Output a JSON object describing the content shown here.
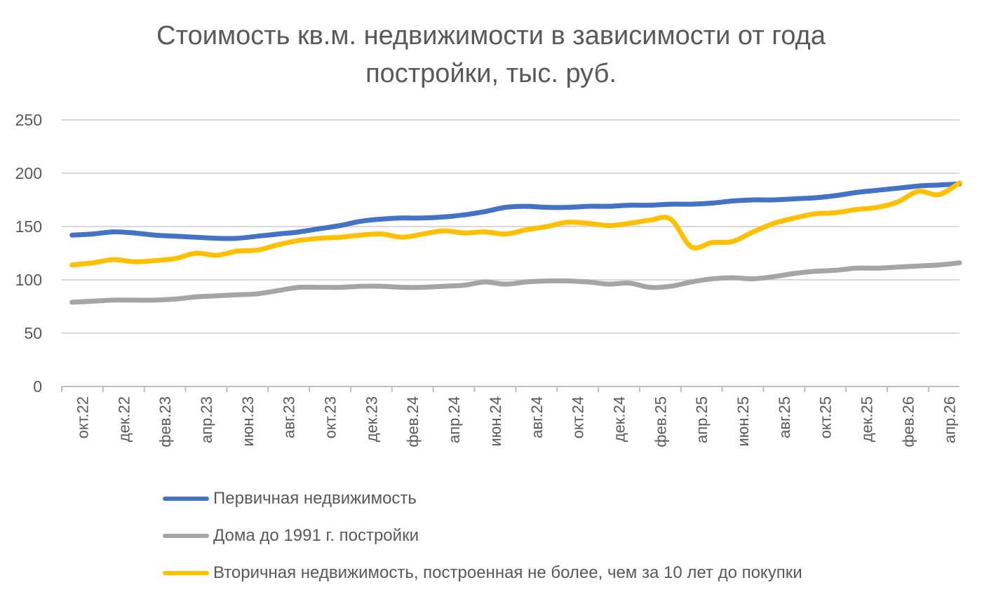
{
  "chart_data": {
    "type": "line",
    "title": [
      "Стоимость кв.м. недвижимости в зависимости от года",
      "постройки, тыс. руб."
    ],
    "xlabel": "",
    "ylabel": "",
    "ylim": [
      0,
      250
    ],
    "yticks": [
      "0",
      "50",
      "100",
      "150",
      "200",
      "250"
    ],
    "grid": true,
    "legend_position": "bottom",
    "x": [
      "окт.22",
      "ноя.22",
      "дек.22",
      "янв.23",
      "фев.23",
      "мар.23",
      "апр.23",
      "май.23",
      "июн.23",
      "июл.23",
      "авг.23",
      "сен.23",
      "окт.23",
      "ноя.23",
      "дек.23",
      "янв.24",
      "фев.24",
      "мар.24",
      "апр.24",
      "май.24",
      "июн.24",
      "июл.24",
      "авг.24",
      "сен.24",
      "окт.24",
      "ноя.24",
      "дек.24",
      "янв.25",
      "фев.25",
      "мар.25",
      "апр.25",
      "май.25",
      "июн.25",
      "июл.25",
      "авг.25",
      "сен.25",
      "окт.25",
      "ноя.25",
      "дек.25",
      "янв.26",
      "фев.26",
      "мар.26",
      "апр.26",
      "май.26"
    ],
    "xtick_labels": [
      "окт.22",
      "дек.22",
      "фев.23",
      "апр.23",
      "июн.23",
      "авг.23",
      "окт.23",
      "дек.23",
      "фев.24",
      "апр.24",
      "июн.24",
      "авг.24",
      "окт.24",
      "дек.24",
      "фев.25",
      "апр.25",
      "июн.25",
      "авг.25",
      "окт.25",
      "дек.25",
      "фев.26",
      "апр.26"
    ],
    "series": [
      {
        "name": "Первичная недвижимость",
        "color": "#4472C4",
        "values": [
          142,
          143,
          145,
          144,
          142,
          141,
          140,
          139,
          139,
          141,
          143,
          145,
          148,
          151,
          155,
          157,
          158,
          158,
          159,
          161,
          164,
          168,
          169,
          168,
          168,
          169,
          169,
          170,
          170,
          171,
          171,
          172,
          174,
          175,
          175,
          176,
          177,
          179,
          182,
          184,
          186,
          188,
          189,
          190
        ]
      },
      {
        "name": "Дома до 1991 г. постройки",
        "color": "#A5A5A5",
        "values": [
          79,
          80,
          81,
          81,
          81,
          82,
          84,
          85,
          86,
          87,
          90,
          93,
          93,
          93,
          94,
          94,
          93,
          93,
          94,
          95,
          98,
          96,
          98,
          99,
          99,
          98,
          96,
          97,
          93,
          94,
          98,
          101,
          102,
          101,
          103,
          106,
          108,
          109,
          111,
          111,
          112,
          113,
          114,
          116
        ]
      },
      {
        "name": "Вторичная недвижимость, построенная не более, чем за 10 лет до покупки",
        "color": "#FFC000",
        "values": [
          114,
          116,
          119,
          117,
          118,
          120,
          125,
          123,
          127,
          128,
          133,
          137,
          139,
          140,
          142,
          143,
          140,
          143,
          146,
          144,
          145,
          143,
          147,
          150,
          154,
          153,
          151,
          153,
          156,
          157,
          131,
          135,
          136,
          145,
          153,
          158,
          162,
          163,
          166,
          168,
          173,
          183,
          180,
          191
        ]
      }
    ]
  }
}
